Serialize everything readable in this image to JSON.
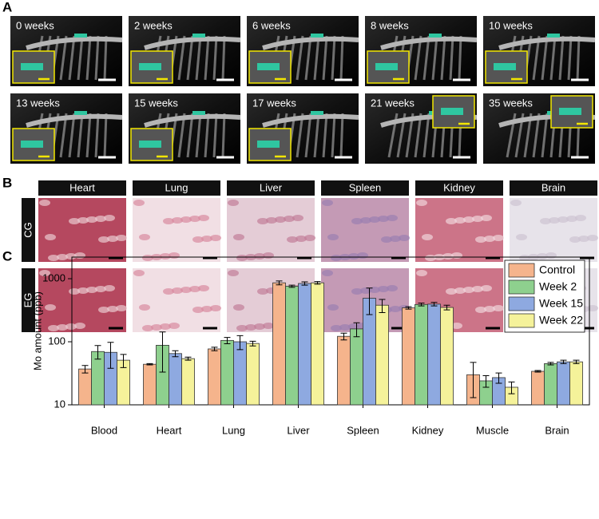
{
  "panel_a": {
    "label": "A",
    "images": [
      "0 weeks",
      "2 weeks",
      "6 weeks",
      "8 weeks",
      "10 weeks",
      "13 weeks",
      "15 weeks",
      "17 weeks",
      "21 weeks",
      "35 weeks"
    ]
  },
  "panel_b": {
    "label": "B",
    "columns": [
      "Heart",
      "Lung",
      "Liver",
      "Spleen",
      "Kidney",
      "Brain"
    ],
    "rows": [
      "CG",
      "EG"
    ]
  },
  "panel_c": {
    "label": "C"
  },
  "chart_data": {
    "type": "bar",
    "y_label": "Mo amount (ppb)",
    "categories": [
      "Blood",
      "Heart",
      "Lung",
      "Liver",
      "Spleen",
      "Kidney",
      "Muscle",
      "Brain"
    ],
    "series": [
      {
        "name": "Control",
        "color": "#f5b48c",
        "values": [
          37,
          44,
          77,
          860,
          122,
          345,
          30,
          34
        ],
        "errors": [
          5,
          1,
          5,
          60,
          15,
          15,
          17,
          1
        ]
      },
      {
        "name": "Week 2",
        "color": "#8ed08e",
        "values": [
          70,
          88,
          105,
          760,
          160,
          390,
          24,
          45
        ],
        "errors": [
          17,
          55,
          12,
          30,
          40,
          20,
          5,
          2
        ]
      },
      {
        "name": "Week 15",
        "color": "#8ea9e0",
        "values": [
          68,
          65,
          100,
          840,
          490,
          395,
          27,
          48
        ],
        "errors": [
          30,
          7,
          25,
          50,
          220,
          25,
          5,
          3
        ]
      },
      {
        "name": "Week 22",
        "color": "#f5f29a",
        "values": [
          51,
          54,
          94,
          860,
          380,
          350,
          19,
          48
        ],
        "errors": [
          12,
          3,
          8,
          40,
          90,
          30,
          4,
          3
        ]
      }
    ],
    "ylim": [
      10,
      2200
    ],
    "yticks": [
      10,
      100,
      1000
    ],
    "log_scale": true,
    "legend": "upper right"
  }
}
